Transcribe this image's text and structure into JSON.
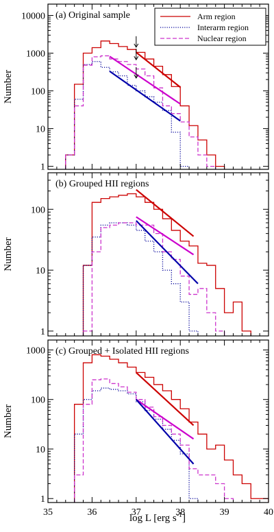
{
  "figure": {
    "xlabel": "log L [erg s",
    "xlabel_sup": "-1",
    "xlabel_tail": "]",
    "ylabel": "Number"
  },
  "colors": {
    "arm": "#cc0000",
    "interarm": "#000099",
    "nuclear": "#cc33cc",
    "fit_arm": "#cc0000",
    "fit_interarm": "#0000aa",
    "fit_nuclear": "#cc00cc"
  },
  "legend": {
    "placement": "top-right of panel (a)",
    "entries": [
      "Arm region",
      "Interarm region",
      "Nuclear region"
    ]
  },
  "chart_data": [
    {
      "type": "line",
      "step": true,
      "title": "(a) Original sample",
      "x_ticks": [
        "35",
        "36",
        "37",
        "38",
        "39",
        "40"
      ],
      "y_ticks": [
        "1",
        "10",
        "100",
        "1000",
        "10000"
      ],
      "xlim": [
        35,
        40
      ],
      "ylim_log10": [
        -0.08,
        4.3
      ],
      "yscale": "log",
      "bin_edges_start": 35.4,
      "bin_width": 0.2,
      "series": [
        {
          "name": "Arm region",
          "style": "solid",
          "values": [
            2,
            150,
            1000,
            1400,
            2100,
            1800,
            1500,
            1250,
            1050,
            700,
            450,
            270,
            130,
            40,
            12,
            5,
            2,
            1
          ]
        },
        {
          "name": "Interarm region",
          "style": "dotted",
          "values": [
            2,
            60,
            500,
            600,
            420,
            320,
            250,
            140,
            100,
            70,
            50,
            30,
            8,
            1
          ]
        },
        {
          "name": "Nuclear region",
          "style": "dashed",
          "values": [
            2,
            40,
            480,
            800,
            850,
            700,
            600,
            500,
            380,
            250,
            120,
            40,
            25,
            15,
            6,
            2,
            1
          ]
        }
      ],
      "fits": [
        {
          "series": "Arm region",
          "x": [
            37.0,
            38.0
          ],
          "y": [
            1050,
            125
          ]
        },
        {
          "series": "Nuclear region",
          "x": [
            36.4,
            38.0
          ],
          "y": [
            820,
            45
          ]
        },
        {
          "series": "Interarm region",
          "x": [
            36.4,
            38.0
          ],
          "y": [
            330,
            16
          ]
        }
      ],
      "arrows": [
        37.0,
        37.0,
        37.0
      ],
      "grid": false
    },
    {
      "type": "line",
      "step": true,
      "title": "(b) Grouped HII regions",
      "x_ticks": [
        "35",
        "36",
        "37",
        "38",
        "39",
        "40"
      ],
      "y_ticks": [
        "1",
        "10",
        "100"
      ],
      "xlim": [
        35,
        40
      ],
      "ylim_log10": [
        -0.08,
        2.6
      ],
      "yscale": "log",
      "bin_edges_start": 35.8,
      "bin_width": 0.2,
      "series": [
        {
          "name": "Arm region",
          "style": "solid",
          "values": [
            12,
            130,
            150,
            160,
            170,
            180,
            160,
            130,
            100,
            70,
            45,
            30,
            25,
            13,
            12,
            5,
            2,
            3,
            1
          ]
        },
        {
          "name": "Interarm region",
          "style": "dotted",
          "values": [
            12,
            35,
            55,
            60,
            60,
            55,
            45,
            30,
            20,
            10,
            6,
            3,
            1
          ]
        },
        {
          "name": "Nuclear region",
          "style": "dashed",
          "values": [
            1,
            20,
            50,
            55,
            60,
            60,
            55,
            55,
            40,
            20,
            15,
            8,
            4,
            5,
            2,
            1
          ]
        }
      ],
      "fits": [
        {
          "series": "Arm region",
          "x": [
            37.0,
            38.3
          ],
          "y": [
            210,
            36
          ]
        },
        {
          "series": "Nuclear region",
          "x": [
            37.0,
            38.3
          ],
          "y": [
            75,
            18
          ]
        },
        {
          "series": "Interarm region",
          "x": [
            37.0,
            38.4
          ],
          "y": [
            65,
            6
          ]
        }
      ],
      "grid": false
    },
    {
      "type": "line",
      "step": true,
      "title": "(c) Grouped + Isolated HII regions",
      "x_ticks": [
        "35",
        "36",
        "37",
        "38",
        "39",
        "40"
      ],
      "y_ticks": [
        "1",
        "10",
        "100",
        "1000"
      ],
      "xlim": [
        35,
        40
      ],
      "ylim_log10": [
        -0.08,
        3.2
      ],
      "yscale": "log",
      "bin_edges_start": 35.6,
      "bin_width": 0.2,
      "series": [
        {
          "name": "Arm region",
          "style": "solid",
          "values": [
            80,
            550,
            800,
            750,
            650,
            550,
            450,
            350,
            280,
            200,
            150,
            100,
            65,
            35,
            20,
            10,
            12,
            6,
            3,
            2,
            1,
            1
          ]
        },
        {
          "name": "Interarm region",
          "style": "dotted",
          "values": [
            20,
            100,
            150,
            170,
            160,
            150,
            130,
            90,
            60,
            40,
            25,
            15,
            8,
            1
          ]
        },
        {
          "name": "Nuclear region",
          "style": "dashed",
          "values": [
            3,
            80,
            250,
            260,
            210,
            180,
            140,
            100,
            70,
            45,
            30,
            20,
            12,
            4,
            3,
            3,
            2,
            1
          ]
        }
      ],
      "fits": [
        {
          "series": "Arm region",
          "x": [
            37.0,
            38.3
          ],
          "y": [
            350,
            30
          ]
        },
        {
          "series": "Nuclear region",
          "x": [
            37.0,
            38.3
          ],
          "y": [
            100,
            16
          ]
        },
        {
          "series": "Interarm region",
          "x": [
            37.0,
            38.3
          ],
          "y": [
            100,
            5
          ]
        }
      ],
      "grid": false
    }
  ]
}
